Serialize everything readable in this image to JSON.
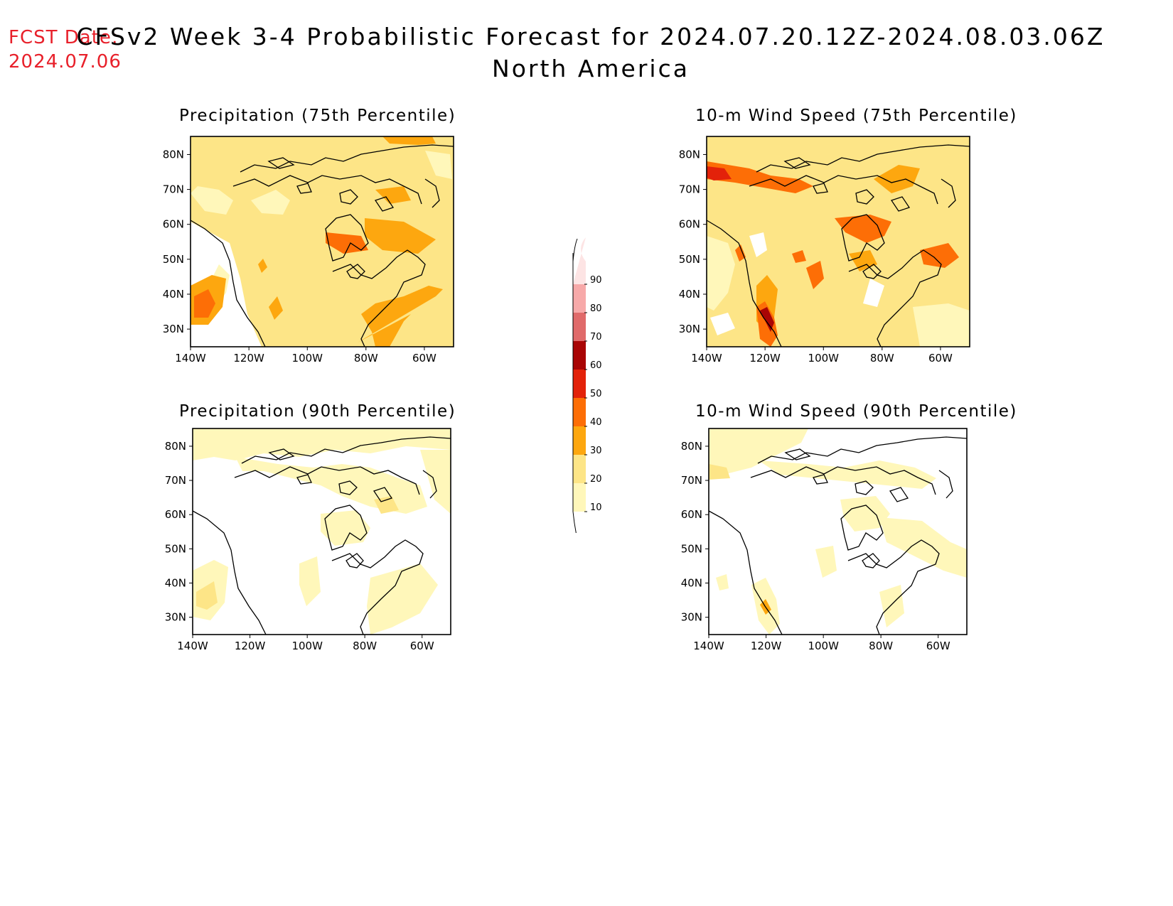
{
  "header": {
    "fcst_label": "FCST Date:",
    "fcst_date": "2024.07.06",
    "title_line1": "CFSv2 Week 3-4 Probabilistic Forecast for 2024.07.20.12Z-2024.08.03.06Z",
    "title_line2": "North America"
  },
  "axes": {
    "lat_labels": [
      "80N",
      "70N",
      "60N",
      "50N",
      "40N",
      "30N"
    ],
    "lon_labels": [
      "140W",
      "120W",
      "100W",
      "80W",
      "60W"
    ]
  },
  "panels": [
    {
      "id": "precip75",
      "title": "Precipitation (75th Percentile)"
    },
    {
      "id": "wind75",
      "title": "10-m Wind Speed (75th Percentile)"
    },
    {
      "id": "precip90",
      "title": "Precipitation (90th Percentile)"
    },
    {
      "id": "wind90",
      "title": "10-m Wind Speed (90th Percentile)"
    }
  ],
  "colorbar": {
    "labels": [
      "10",
      "20",
      "30",
      "40",
      "50",
      "60",
      "70",
      "80",
      "90"
    ],
    "colors": [
      "#fff7ba",
      "#fde587",
      "#fda70f",
      "#fd6e06",
      "#e3220a",
      "#a90505",
      "#e06a6a",
      "#f7a9a9",
      "#fde4e4"
    ]
  }
}
